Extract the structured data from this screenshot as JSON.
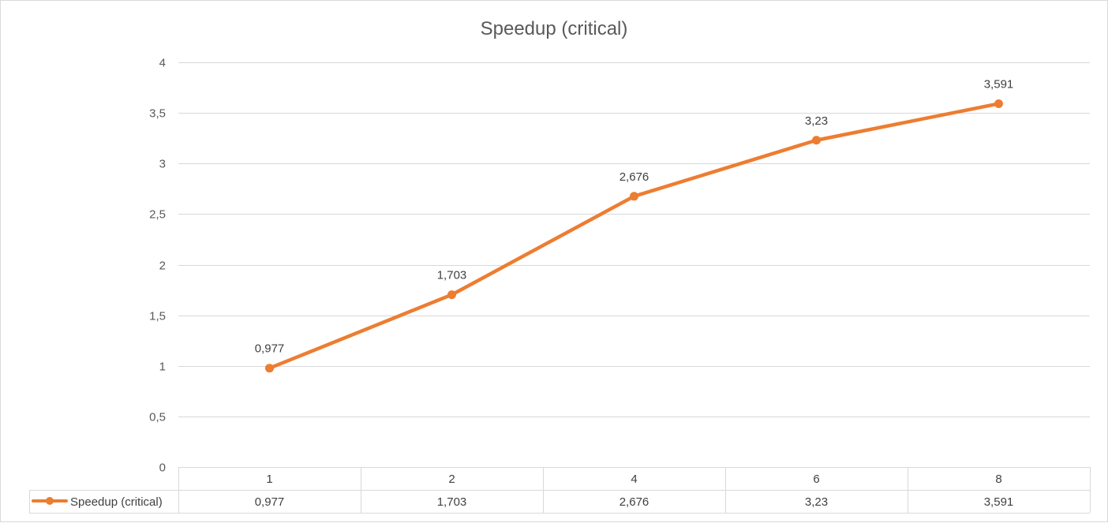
{
  "chart_data": {
    "type": "line",
    "title": "Speedup (critical)",
    "xlabel": "",
    "ylabel": "",
    "categories": [
      "1",
      "2",
      "4",
      "6",
      "8"
    ],
    "series": [
      {
        "name": "Speedup (critical)",
        "values": [
          0.977,
          1.703,
          2.676,
          3.23,
          3.591
        ],
        "value_labels": [
          "0,977",
          "1,703",
          "2,676",
          "3,23",
          "3,591"
        ],
        "color": "#ED7D31"
      }
    ],
    "ylim": [
      0,
      4
    ],
    "yticks": [
      0,
      0.5,
      1,
      1.5,
      2,
      2.5,
      3,
      3.5,
      4
    ],
    "ytick_labels": [
      "0",
      "0,5",
      "1",
      "1,5",
      "2",
      "2,5",
      "3",
      "3,5",
      "4"
    ],
    "grid": true,
    "data_labels": true,
    "legend": "data-table-left",
    "data_table": true
  },
  "colors": {
    "series": "#ED7D31",
    "grid": "#d9d9d9",
    "text": "#595959"
  }
}
